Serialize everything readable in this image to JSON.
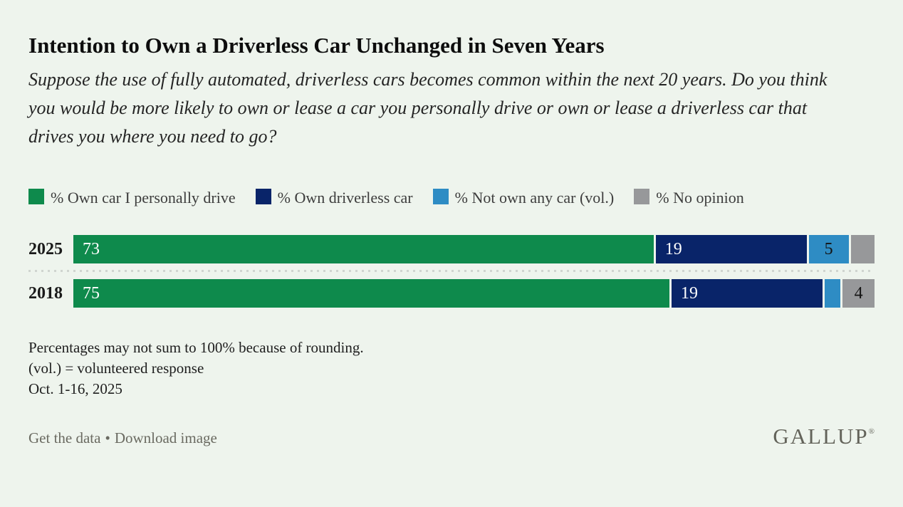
{
  "header": {
    "title": "Intention to Own a Driverless Car Unchanged in Seven Years",
    "subtitle": "Suppose the use of fully automated, driverless cars becomes common within the next 20 years. Do you think you would be more likely to own or lease a car you personally drive or own or lease a driverless car that drives you where you need to go?"
  },
  "chart_data": {
    "type": "bar",
    "stacked": true,
    "orientation": "horizontal",
    "xlim": [
      0,
      100
    ],
    "grid": false,
    "legend_position": "top",
    "categories": [
      "2025",
      "2018"
    ],
    "series": [
      {
        "name": "% Own car I personally drive",
        "color": "#0e8a4c",
        "label_color": "#ffffff",
        "label_align": "left",
        "values": [
          73,
          75
        ],
        "labels": [
          "73",
          "75"
        ]
      },
      {
        "name": "% Own driverless car",
        "color": "#092469",
        "label_color": "#ffffff",
        "label_align": "left",
        "values": [
          19,
          19
        ],
        "labels": [
          "19",
          "19"
        ]
      },
      {
        "name": "% Not own any car (vol.)",
        "color": "#2e8cc4",
        "label_color": "#141414",
        "label_align": "center",
        "values": [
          5,
          2
        ],
        "labels": [
          "5",
          ""
        ]
      },
      {
        "name": "% No opinion",
        "color": "#97989a",
        "label_color": "#141414",
        "label_align": "center",
        "values": [
          3,
          4
        ],
        "labels": [
          "",
          "4"
        ]
      }
    ]
  },
  "footnotes": {
    "line1": "Percentages may not sum to 100% because of rounding.",
    "line2": "(vol.) = volunteered response",
    "line3": "Oct. 1-16, 2025"
  },
  "footer": {
    "get_data_label": "Get the data",
    "separator": "•",
    "download_label": "Download image",
    "logo_text": "GALLUP",
    "logo_reg_mark": "®"
  },
  "colors": {
    "background": "#eef4ed",
    "green": "#0e8a4c",
    "navy": "#092469",
    "blue": "#2e8cc4",
    "gray": "#97989a",
    "footer_gray": "#6a6a61"
  }
}
